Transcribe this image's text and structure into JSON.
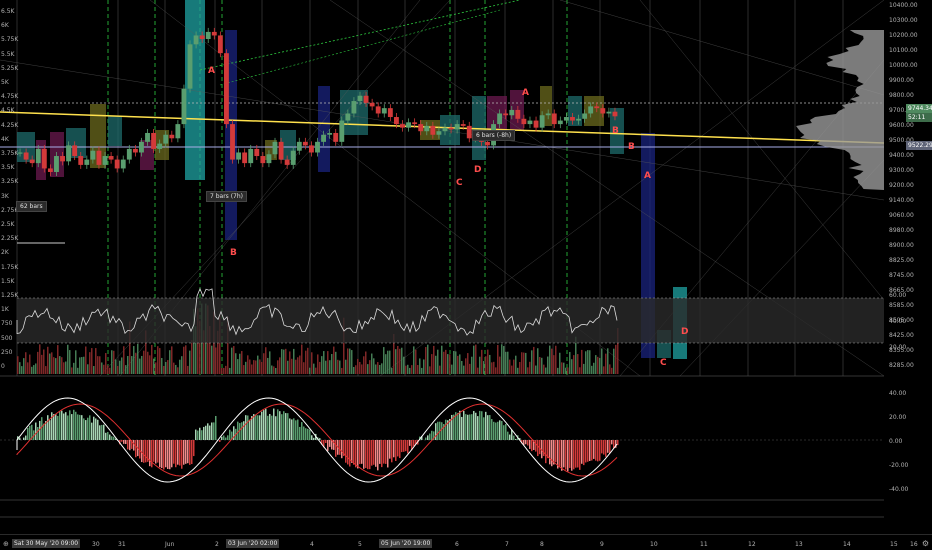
{
  "price_axis": {
    "ticks": [
      "10400.00",
      "10300.00",
      "10200.00",
      "10100.00",
      "10000.00",
      "9900.00",
      "9800.00",
      "9700.00",
      "9600.00",
      "9500.00",
      "9400.00",
      "9300.00",
      "9200.00",
      "9140.00",
      "9060.00",
      "8980.00",
      "8900.00",
      "8825.00",
      "8745.00",
      "8665.00",
      "8585.00",
      "8505.00",
      "8425.00",
      "8355.00",
      "8285.00"
    ],
    "osc_ticks": [
      "60.00",
      "40.00",
      "20.00"
    ],
    "macd_ticks": [
      "40.00",
      "20.00",
      "0.00",
      "-20.00",
      "-40.00"
    ],
    "last_price": "9744.34",
    "countdown": "52:11",
    "level_price": "9522.29"
  },
  "volume_axis": {
    "labels": [
      "6.5K",
      "6K",
      "5.75K",
      "5.5K",
      "5.25K",
      "5K",
      "4.75K",
      "4.5K",
      "4.25K",
      "4K",
      "3.75K",
      "3.5K",
      "3.25K",
      "3K",
      "2.75K",
      "2.5K",
      "2.25K",
      "2K",
      "1.75K",
      "1.5K",
      "1.25K",
      "1K",
      "750",
      "500",
      "250",
      "0"
    ]
  },
  "time_axis": {
    "labels": [
      "31",
      "Jun",
      "2",
      "4",
      "5",
      "6",
      "7",
      "8",
      "9",
      "10",
      "11",
      "12",
      "13",
      "14",
      "15",
      "16"
    ],
    "pill_left": "Sat 30 May '20  09:00",
    "pill_mid": "03 Jun '20  02:00",
    "pill_right": "05 Jun '20  19:00",
    "first": "30"
  },
  "tags": {
    "bars_62": "62 bars",
    "bars_7": "7 bars (7h)",
    "bars_6": "6 bars (-8h)"
  },
  "pattern_letters": {
    "a1": "A",
    "b1": "B",
    "c2": "C",
    "d2": "D",
    "a2": "A",
    "b3": "B",
    "b4": "B",
    "a4": "A",
    "c4": "C",
    "d4": "D"
  },
  "icons": {
    "gear": "gear-icon",
    "zoom": "zoom-icon"
  },
  "colors": {
    "bull": "#5a9e6f",
    "bear": "#d33a3a",
    "yellow": "#ffe14d",
    "teal": "#1fa3a3",
    "navy": "#1a237e"
  },
  "chart_data": {
    "type": "candlestick",
    "price_range": [
      8285,
      10400
    ],
    "candles_close": [
      9540,
      9500,
      9480,
      9560,
      9450,
      9430,
      9520,
      9490,
      9580,
      9520,
      9470,
      9500,
      9550,
      9470,
      9520,
      9500,
      9450,
      9500,
      9560,
      9540,
      9600,
      9650,
      9560,
      9590,
      9640,
      9620,
      9700,
      9900,
      10150,
      10200,
      10180,
      10220,
      10200,
      10100,
      9700,
      9500,
      9540,
      9480,
      9560,
      9520,
      9480,
      9530,
      9600,
      9500,
      9470,
      9550,
      9600,
      9580,
      9540,
      9600,
      9640,
      9650,
      9600,
      9720,
      9760,
      9830,
      9860,
      9820,
      9800,
      9760,
      9790,
      9740,
      9700,
      9680,
      9710,
      9700,
      9660,
      9690,
      9640,
      9660,
      9680,
      9670,
      9700,
      9690,
      9620,
      9640,
      9600,
      9580,
      9700,
      9760,
      9750,
      9780,
      9730,
      9700,
      9720,
      9680,
      9750,
      9760,
      9700,
      9720,
      9740,
      9720,
      9730,
      9760,
      9800,
      9790,
      9760,
      9770,
      9744
    ],
    "volume_oscillator_range": [
      0,
      60
    ],
    "macd_range": [
      -40,
      40
    ],
    "levels": {
      "upper_dotted": 9800,
      "lower_band": 9522.29
    }
  }
}
